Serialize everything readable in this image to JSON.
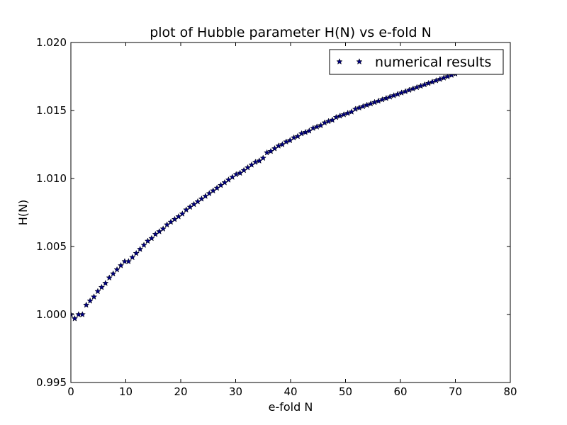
{
  "chart_data": {
    "type": "scatter",
    "title": "plot of Hubble parameter H(N) vs e-fold N",
    "xlabel": "e-fold N",
    "ylabel": "H(N)",
    "xlim": [
      0,
      80
    ],
    "ylim": [
      0.995,
      1.02
    ],
    "x_ticks": [
      0,
      10,
      20,
      30,
      40,
      50,
      60,
      70,
      80
    ],
    "x_tick_labels": [
      "0",
      "10",
      "20",
      "30",
      "40",
      "50",
      "60",
      "70",
      "80"
    ],
    "y_ticks": [
      0.995,
      1.0,
      1.005,
      1.01,
      1.015,
      1.02
    ],
    "y_tick_labels": [
      "0.995",
      "1.000",
      "1.005",
      "1.010",
      "1.015",
      "1.020"
    ],
    "grid": false,
    "legend": {
      "placement": "top-right",
      "entries": [
        "numerical results"
      ]
    },
    "series": [
      {
        "name": "numerical results",
        "marker": "star",
        "color": "#000080",
        "points": [
          [
            0.0,
            1.0
          ],
          [
            0.7,
            0.9997
          ],
          [
            1.4,
            1.0
          ],
          [
            2.1,
            1.0
          ],
          [
            2.8,
            1.0007
          ],
          [
            3.5,
            1.001
          ],
          [
            4.2,
            1.0013
          ],
          [
            4.9,
            1.0017
          ],
          [
            5.6,
            1.002
          ],
          [
            6.3,
            1.0023
          ],
          [
            7.0,
            1.0027
          ],
          [
            7.7,
            1.003
          ],
          [
            8.4,
            1.0033
          ],
          [
            9.1,
            1.0036
          ],
          [
            9.8,
            1.0039
          ],
          [
            10.5,
            1.0039
          ],
          [
            11.2,
            1.0042
          ],
          [
            11.9,
            1.0045
          ],
          [
            12.6,
            1.0048
          ],
          [
            13.3,
            1.0051
          ],
          [
            14.0,
            1.0054
          ],
          [
            14.7,
            1.0056
          ],
          [
            15.4,
            1.0059
          ],
          [
            16.1,
            1.0061
          ],
          [
            16.8,
            1.0063
          ],
          [
            17.5,
            1.0066
          ],
          [
            18.2,
            1.0068
          ],
          [
            18.9,
            1.007
          ],
          [
            19.6,
            1.0072
          ],
          [
            20.3,
            1.0074
          ],
          [
            21.0,
            1.0077
          ],
          [
            21.7,
            1.0079
          ],
          [
            22.4,
            1.0081
          ],
          [
            23.1,
            1.0083
          ],
          [
            23.8,
            1.0085
          ],
          [
            24.5,
            1.0087
          ],
          [
            25.2,
            1.0089
          ],
          [
            25.9,
            1.0091
          ],
          [
            26.6,
            1.0093
          ],
          [
            27.3,
            1.0095
          ],
          [
            28.0,
            1.0097
          ],
          [
            28.7,
            1.0099
          ],
          [
            29.4,
            1.0101
          ],
          [
            30.1,
            1.0103
          ],
          [
            30.8,
            1.0104
          ],
          [
            31.5,
            1.0106
          ],
          [
            32.2,
            1.0108
          ],
          [
            32.9,
            1.011
          ],
          [
            33.6,
            1.0112
          ],
          [
            34.3,
            1.0113
          ],
          [
            35.0,
            1.0115
          ],
          [
            35.7,
            1.0119
          ],
          [
            36.4,
            1.012
          ],
          [
            37.1,
            1.0122
          ],
          [
            37.8,
            1.0124
          ],
          [
            38.5,
            1.0125
          ],
          [
            39.2,
            1.0127
          ],
          [
            39.9,
            1.0128
          ],
          [
            40.6,
            1.013
          ],
          [
            41.3,
            1.0131
          ],
          [
            42.0,
            1.0133
          ],
          [
            42.7,
            1.0134
          ],
          [
            43.4,
            1.0135
          ],
          [
            44.1,
            1.0137
          ],
          [
            44.8,
            1.0138
          ],
          [
            45.5,
            1.0139
          ],
          [
            46.2,
            1.0141
          ],
          [
            46.9,
            1.0142
          ],
          [
            47.6,
            1.0143
          ],
          [
            48.3,
            1.0145
          ],
          [
            49.0,
            1.0146
          ],
          [
            49.7,
            1.0147
          ],
          [
            50.4,
            1.0148
          ],
          [
            51.1,
            1.0149
          ],
          [
            51.8,
            1.0151
          ],
          [
            52.5,
            1.0152
          ],
          [
            53.2,
            1.0153
          ],
          [
            53.9,
            1.0154
          ],
          [
            54.6,
            1.0155
          ],
          [
            55.3,
            1.0156
          ],
          [
            56.0,
            1.0157
          ],
          [
            56.7,
            1.0158
          ],
          [
            57.4,
            1.0159
          ],
          [
            58.1,
            1.016
          ],
          [
            58.8,
            1.0161
          ],
          [
            59.5,
            1.0162
          ],
          [
            60.2,
            1.0163
          ],
          [
            60.9,
            1.0164
          ],
          [
            61.6,
            1.0165
          ],
          [
            62.3,
            1.0166
          ],
          [
            63.0,
            1.0167
          ],
          [
            63.7,
            1.0168
          ],
          [
            64.4,
            1.0169
          ],
          [
            65.1,
            1.017
          ],
          [
            65.8,
            1.0171
          ],
          [
            66.5,
            1.0172
          ],
          [
            67.2,
            1.0173
          ],
          [
            67.9,
            1.0174
          ],
          [
            68.6,
            1.0175
          ],
          [
            69.3,
            1.0176
          ],
          [
            70.0,
            1.0177
          ]
        ]
      }
    ]
  }
}
